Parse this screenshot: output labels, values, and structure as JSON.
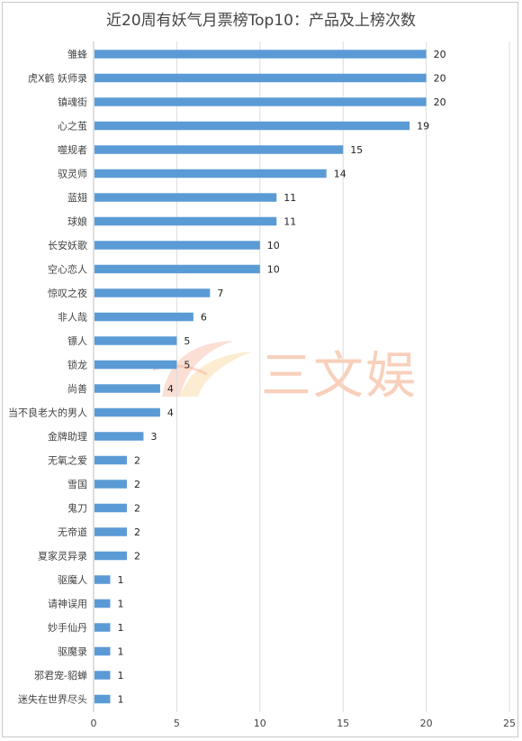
{
  "chart_data": {
    "type": "bar",
    "orientation": "horizontal",
    "title": "近20周有妖气月票榜Top10：产品及上榜次数",
    "categories": [
      "雏蜂",
      "虎X鹤 妖师录",
      "镇魂街",
      "心之茧",
      "噬规者",
      "驭灵师",
      "蓝翅",
      "球娘",
      "长安妖歌",
      "空心恋人",
      "惊叹之夜",
      "非人哉",
      "镖人",
      "锁龙",
      "尚善",
      "当不良老大的男人",
      "金牌助理",
      "无氧之爱",
      "雪国",
      "鬼刀",
      "无帝道",
      "夏家灵异录",
      "驱魔人",
      "请神误用",
      "妙手仙丹",
      "驱魔录",
      "邪君宠-貂蝉",
      "迷失在世界尽头"
    ],
    "values": [
      20,
      20,
      20,
      19,
      15,
      14,
      11,
      11,
      10,
      10,
      7,
      6,
      5,
      5,
      4,
      4,
      3,
      2,
      2,
      2,
      2,
      2,
      1,
      1,
      1,
      1,
      1,
      1
    ],
    "xlim": [
      0,
      25
    ],
    "xticks": [
      "0",
      "5",
      "10",
      "15",
      "20",
      "25"
    ],
    "grid": "vertical",
    "legend": "none",
    "bar_color": "#5b9bd5"
  },
  "watermark": {
    "text": "三文娱"
  }
}
